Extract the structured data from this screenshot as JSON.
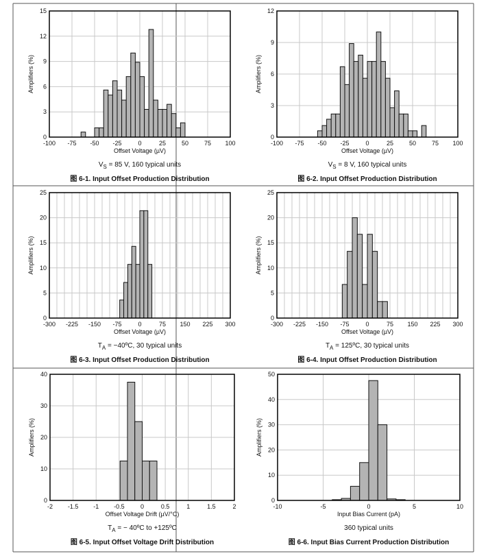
{
  "colors": {
    "bar_fill": "#b4b4b4",
    "bar_stroke": "#111111",
    "grid": "#c8c8c8",
    "frame": "#000000",
    "cell_border": "#555555"
  },
  "chart_data": [
    {
      "type": "bar",
      "histogram": true,
      "bin_edges": [
        -65,
        -60,
        -55,
        -50,
        -45,
        -40,
        -35,
        -30,
        -25,
        -20,
        -15,
        -10,
        -5,
        0,
        5,
        10,
        15,
        20,
        25,
        30,
        35,
        40,
        45,
        50
      ],
      "values": [
        0.6,
        0,
        0,
        1.1,
        1.1,
        5.6,
        5.0,
        6.7,
        5.6,
        4.4,
        7.2,
        10.0,
        8.9,
        7.2,
        3.3,
        12.8,
        4.4,
        3.3,
        3.3,
        3.9,
        2.8,
        1.1,
        1.7
      ],
      "xlim": [
        -100,
        100
      ],
      "ylim": [
        0,
        15
      ],
      "xticks": [
        "-100",
        "-75",
        "-50",
        "-25",
        "0",
        "25",
        "50",
        "75",
        "100"
      ],
      "xgrid_step": 25,
      "yticks": [
        "0",
        "3",
        "6",
        "9",
        "12",
        "15"
      ],
      "xlabel": "Offset Voltage (µV)",
      "ylabel": "Amplifiers (%)",
      "condition": {
        "main": "V",
        "sub": "S",
        "rest": " = 85 V, 160 typical units"
      },
      "caption": "图 6-1. Input Offset Production Distribution",
      "grid": true
    },
    {
      "type": "bar",
      "histogram": true,
      "bin_edges": [
        -55,
        -50,
        -45,
        -40,
        -35,
        -30,
        -25,
        -20,
        -15,
        -10,
        -5,
        0,
        5,
        10,
        15,
        20,
        25,
        30,
        35,
        40,
        45,
        50,
        55,
        60,
        65
      ],
      "values": [
        0.6,
        1.1,
        1.7,
        2.2,
        2.2,
        6.7,
        5.0,
        8.9,
        7.2,
        7.8,
        5.6,
        7.2,
        7.2,
        10.0,
        7.2,
        5.6,
        2.8,
        4.4,
        2.2,
        2.2,
        0.6,
        0.6,
        0,
        1.1
      ],
      "xlim": [
        -100,
        100
      ],
      "ylim": [
        0,
        12
      ],
      "xticks": [
        "-100",
        "-75",
        "-50",
        "-25",
        "0",
        "25",
        "50",
        "75",
        "100"
      ],
      "xgrid_step": 25,
      "yticks": [
        "0",
        "3",
        "6",
        "9",
        "12"
      ],
      "xlabel": "Offset Voltage (µV)",
      "ylabel": "Amplifiers (%)",
      "condition": {
        "main": "V",
        "sub": "S",
        "rest": " = 8 V, 160 typical units"
      },
      "caption": "图 6-2. Input Offset Production Distribution",
      "grid": true
    },
    {
      "type": "bar",
      "histogram": true,
      "bin_edges": [
        -66.7,
        -53.3,
        -40,
        -26.7,
        -13.3,
        0,
        13.3,
        26.7,
        40
      ],
      "values": [
        3.6,
        7.1,
        10.7,
        14.3,
        10.7,
        21.4,
        21.4,
        10.7
      ],
      "xlim": [
        -300,
        300
      ],
      "ylim": [
        0,
        25
      ],
      "xticks": [
        "-300",
        "-225",
        "-150",
        "-75",
        "0",
        "75",
        "150",
        "225",
        "300"
      ],
      "xgrid_step": 25,
      "yticks": [
        "0",
        "5",
        "10",
        "15",
        "20",
        "25"
      ],
      "xlabel": "Offset Voltage (µV)",
      "ylabel": "Amplifiers (%)",
      "condition": {
        "main": "T",
        "sub": "A",
        "rest": " = −40ºC, 30 typical units"
      },
      "caption": "图 6-3. Input Offset Production Distribution",
      "grid": true
    },
    {
      "type": "bar",
      "histogram": true,
      "bin_edges": [
        -83.3,
        -66.7,
        -50,
        -33.3,
        -16.7,
        0,
        16.7,
        33.3,
        50,
        66.7
      ],
      "values": [
        6.7,
        13.3,
        20.0,
        16.7,
        6.7,
        16.7,
        13.3,
        3.3,
        3.3
      ],
      "xlim": [
        -300,
        300
      ],
      "ylim": [
        0,
        25
      ],
      "xticks": [
        "-300",
        "-225",
        "-150",
        "-75",
        "0",
        "75",
        "150",
        "225",
        "300"
      ],
      "xgrid_step": 25,
      "yticks": [
        "0",
        "5",
        "10",
        "15",
        "20",
        "25"
      ],
      "xlabel": "Offset Voltage (µV)",
      "ylabel": "Amplifiers (%)",
      "condition": {
        "main": "T",
        "sub": "A",
        "rest": " = 125ºC, 30 typical units"
      },
      "caption": "图 6-4. Input Offset Production Distribution",
      "grid": true
    },
    {
      "type": "bar",
      "histogram": true,
      "bin_edges": [
        -0.48,
        -0.32,
        -0.16,
        0,
        0.16,
        0.32
      ],
      "values": [
        12.5,
        37.5,
        25.0,
        12.5,
        12.5
      ],
      "xlim": [
        -2,
        2
      ],
      "ylim": [
        0,
        40
      ],
      "xticks": [
        "-2",
        "-1.5",
        "-1",
        "-0.5",
        "0",
        "0.5",
        "1",
        "1.5",
        "2"
      ],
      "xgrid_step": 0.5,
      "yticks": [
        "0",
        "10",
        "20",
        "30",
        "40"
      ],
      "xlabel": "Offset Voltage Drift (µV/°C)",
      "ylabel": "Amplifiers (%)",
      "condition": {
        "main": "T",
        "sub": "A",
        "rest": " =  − 40ºC to +125ºC"
      },
      "caption": "图 6-5. Input Offset Voltage Drift Distribution",
      "grid": true
    },
    {
      "type": "bar",
      "histogram": true,
      "bin_edges": [
        -4,
        -3,
        -2,
        -1,
        0,
        1,
        2,
        3,
        4
      ],
      "values": [
        0.3,
        0.8,
        5.6,
        15.0,
        47.5,
        30.0,
        0.6,
        0.3
      ],
      "xlim": [
        -10,
        10
      ],
      "ylim": [
        0,
        50
      ],
      "xticks": [
        "-10",
        "-5",
        "0",
        "5",
        "10"
      ],
      "xgrid_step": 5,
      "yticks": [
        "0",
        "10",
        "20",
        "30",
        "40",
        "50"
      ],
      "xlabel": "Input Bias Current (pA)",
      "ylabel": "Amplifiers (%)",
      "condition": {
        "main": "360 typical units",
        "sub": "",
        "rest": ""
      },
      "caption": "图 6-6. Input Bias Current Production Distribution",
      "grid": true
    }
  ]
}
